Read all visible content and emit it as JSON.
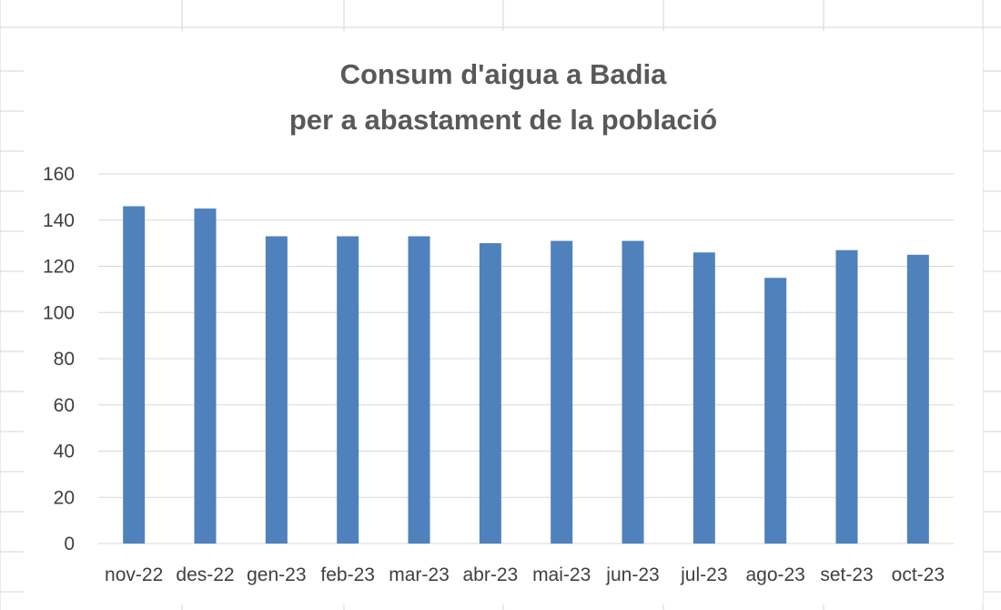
{
  "chart_data": {
    "type": "bar",
    "title": [
      "Consum d'aigua a Badia",
      "per a abastament de la població"
    ],
    "xlabel": "",
    "ylabel": "",
    "categories": [
      "nov-22",
      "des-22",
      "gen-23",
      "feb-23",
      "mar-23",
      "abr-23",
      "mai-23",
      "jun-23",
      "jul-23",
      "ago-23",
      "set-23",
      "oct-23"
    ],
    "values": [
      146,
      145,
      133,
      133,
      133,
      130,
      131,
      131,
      126,
      115,
      127,
      125
    ],
    "ylim": [
      0,
      160
    ],
    "yticks": [
      0,
      20,
      40,
      60,
      80,
      100,
      120,
      140,
      160
    ],
    "grid": true,
    "legend": "none",
    "bar_color": "#4f81bd",
    "gridline_color": "#d9d9d9",
    "text_color": "#404040",
    "title_color": "#595959"
  }
}
